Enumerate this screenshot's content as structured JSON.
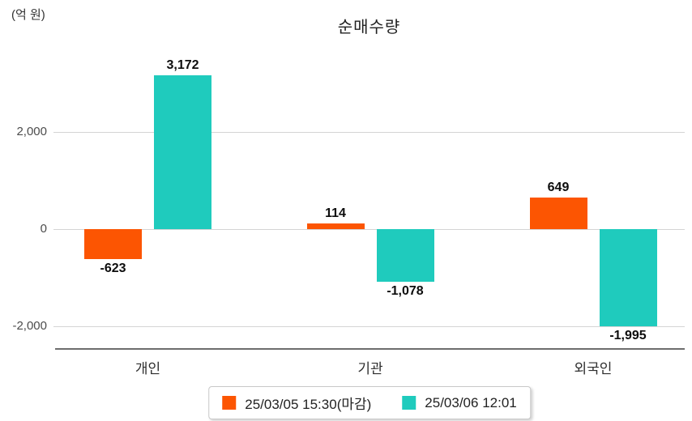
{
  "title": "순매수량",
  "unit_label": "(억 원)",
  "chart_data": {
    "type": "bar",
    "title": "순매수량",
    "ylabel": "(억 원)",
    "xlabel": "",
    "categories": [
      "개인",
      "기관",
      "외국인"
    ],
    "series": [
      {
        "name": "25/03/05 15:30(마감)",
        "color": "#fc5502",
        "values": [
          -623,
          114,
          649
        ],
        "labels": [
          "-623",
          "114",
          "649"
        ]
      },
      {
        "name": "25/03/06 12:01",
        "color": "#1fcbbd",
        "values": [
          3172,
          -1078,
          -1995
        ],
        "labels": [
          "3,172",
          "-1,078",
          "-1,995"
        ]
      }
    ],
    "yticks": [
      {
        "value": 2000,
        "label": "2,000"
      },
      {
        "value": 0,
        "label": "0"
      },
      {
        "value": -2000,
        "label": "-2,000"
      }
    ],
    "ylim": [
      -2450,
      3700
    ],
    "grid": true,
    "legend_position": "bottom",
    "grid_color": "#d4d4d4",
    "axis_line_color": "#6e6e6e"
  }
}
